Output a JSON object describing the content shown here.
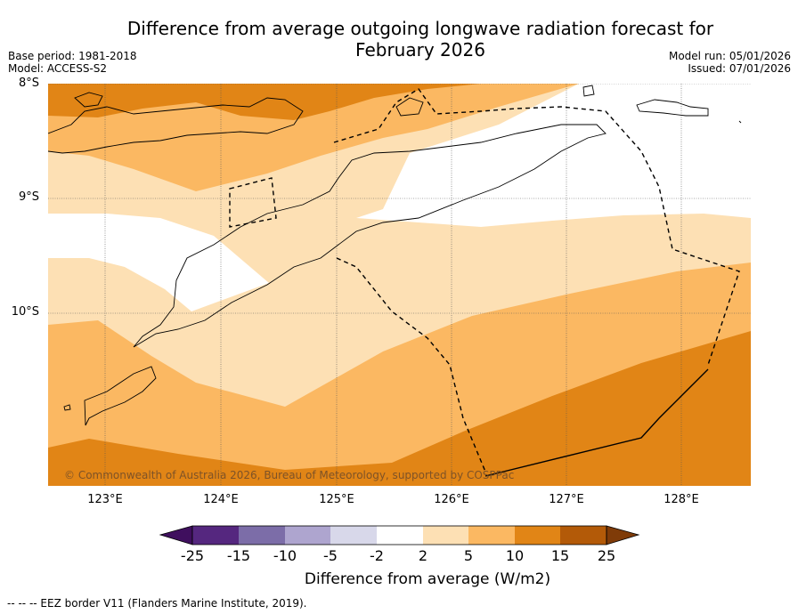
{
  "title_line1": "Difference from average outgoing longwave radiation forecast for",
  "title_line2": "February 2026",
  "base_period": "Base period: 1981-2018",
  "model": "Model: ACCESS-S2",
  "model_run": "Model run: 05/01/2026",
  "issued": "Issued: 07/01/2026",
  "lat_labels": [
    "8°S",
    "9°S",
    "10°S"
  ],
  "lon_labels": [
    "123°E",
    "124°E",
    "125°E",
    "126°E",
    "127°E",
    "128°E"
  ],
  "copyright": "© Commonwealth of Australia 2026, Bureau of Meteorology, supported by COSPPac",
  "colorbar": {
    "ticks": [
      "-25",
      "-15",
      "-10",
      "-5",
      "-2",
      "2",
      "5",
      "10",
      "15",
      "25"
    ],
    "colors": [
      "#3f0f5e",
      "#55277f",
      "#7c6da8",
      "#aea5cf",
      "#d8d8ea",
      "#ffffff",
      "#fde0b4",
      "#fbb862",
      "#e18516",
      "#b35a08",
      "#7f3b08"
    ],
    "label": "Difference from average (W/m2)"
  },
  "footnote": "--  --  -- EEZ border V11 (Flanders Marine Institute, 2019)."
}
